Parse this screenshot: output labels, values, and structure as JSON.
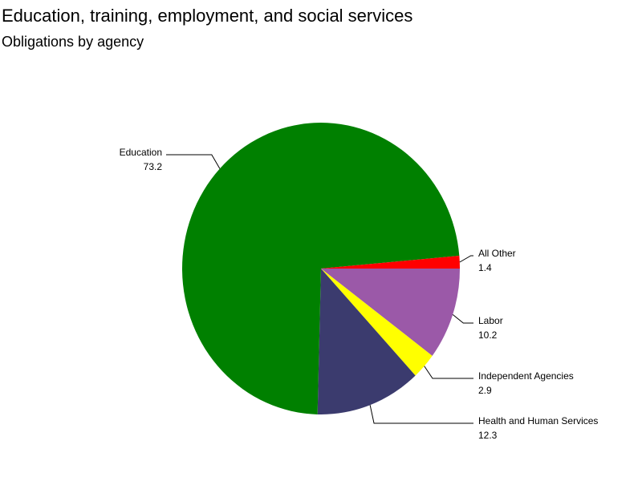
{
  "chart_data": {
    "type": "pie",
    "title": "Education, training, employment, and social services",
    "subtitle": "Obligations by agency",
    "categories": [
      "Labor",
      "Independent Agencies",
      "Health and Human Services",
      "Education",
      "All Other"
    ],
    "values": [
      10.2,
      2.9,
      12.3,
      73.2,
      1.4
    ],
    "colors": [
      "#9b59a8",
      "#ffff00",
      "#3b3b6e",
      "#008000",
      "#ff0000"
    ]
  }
}
